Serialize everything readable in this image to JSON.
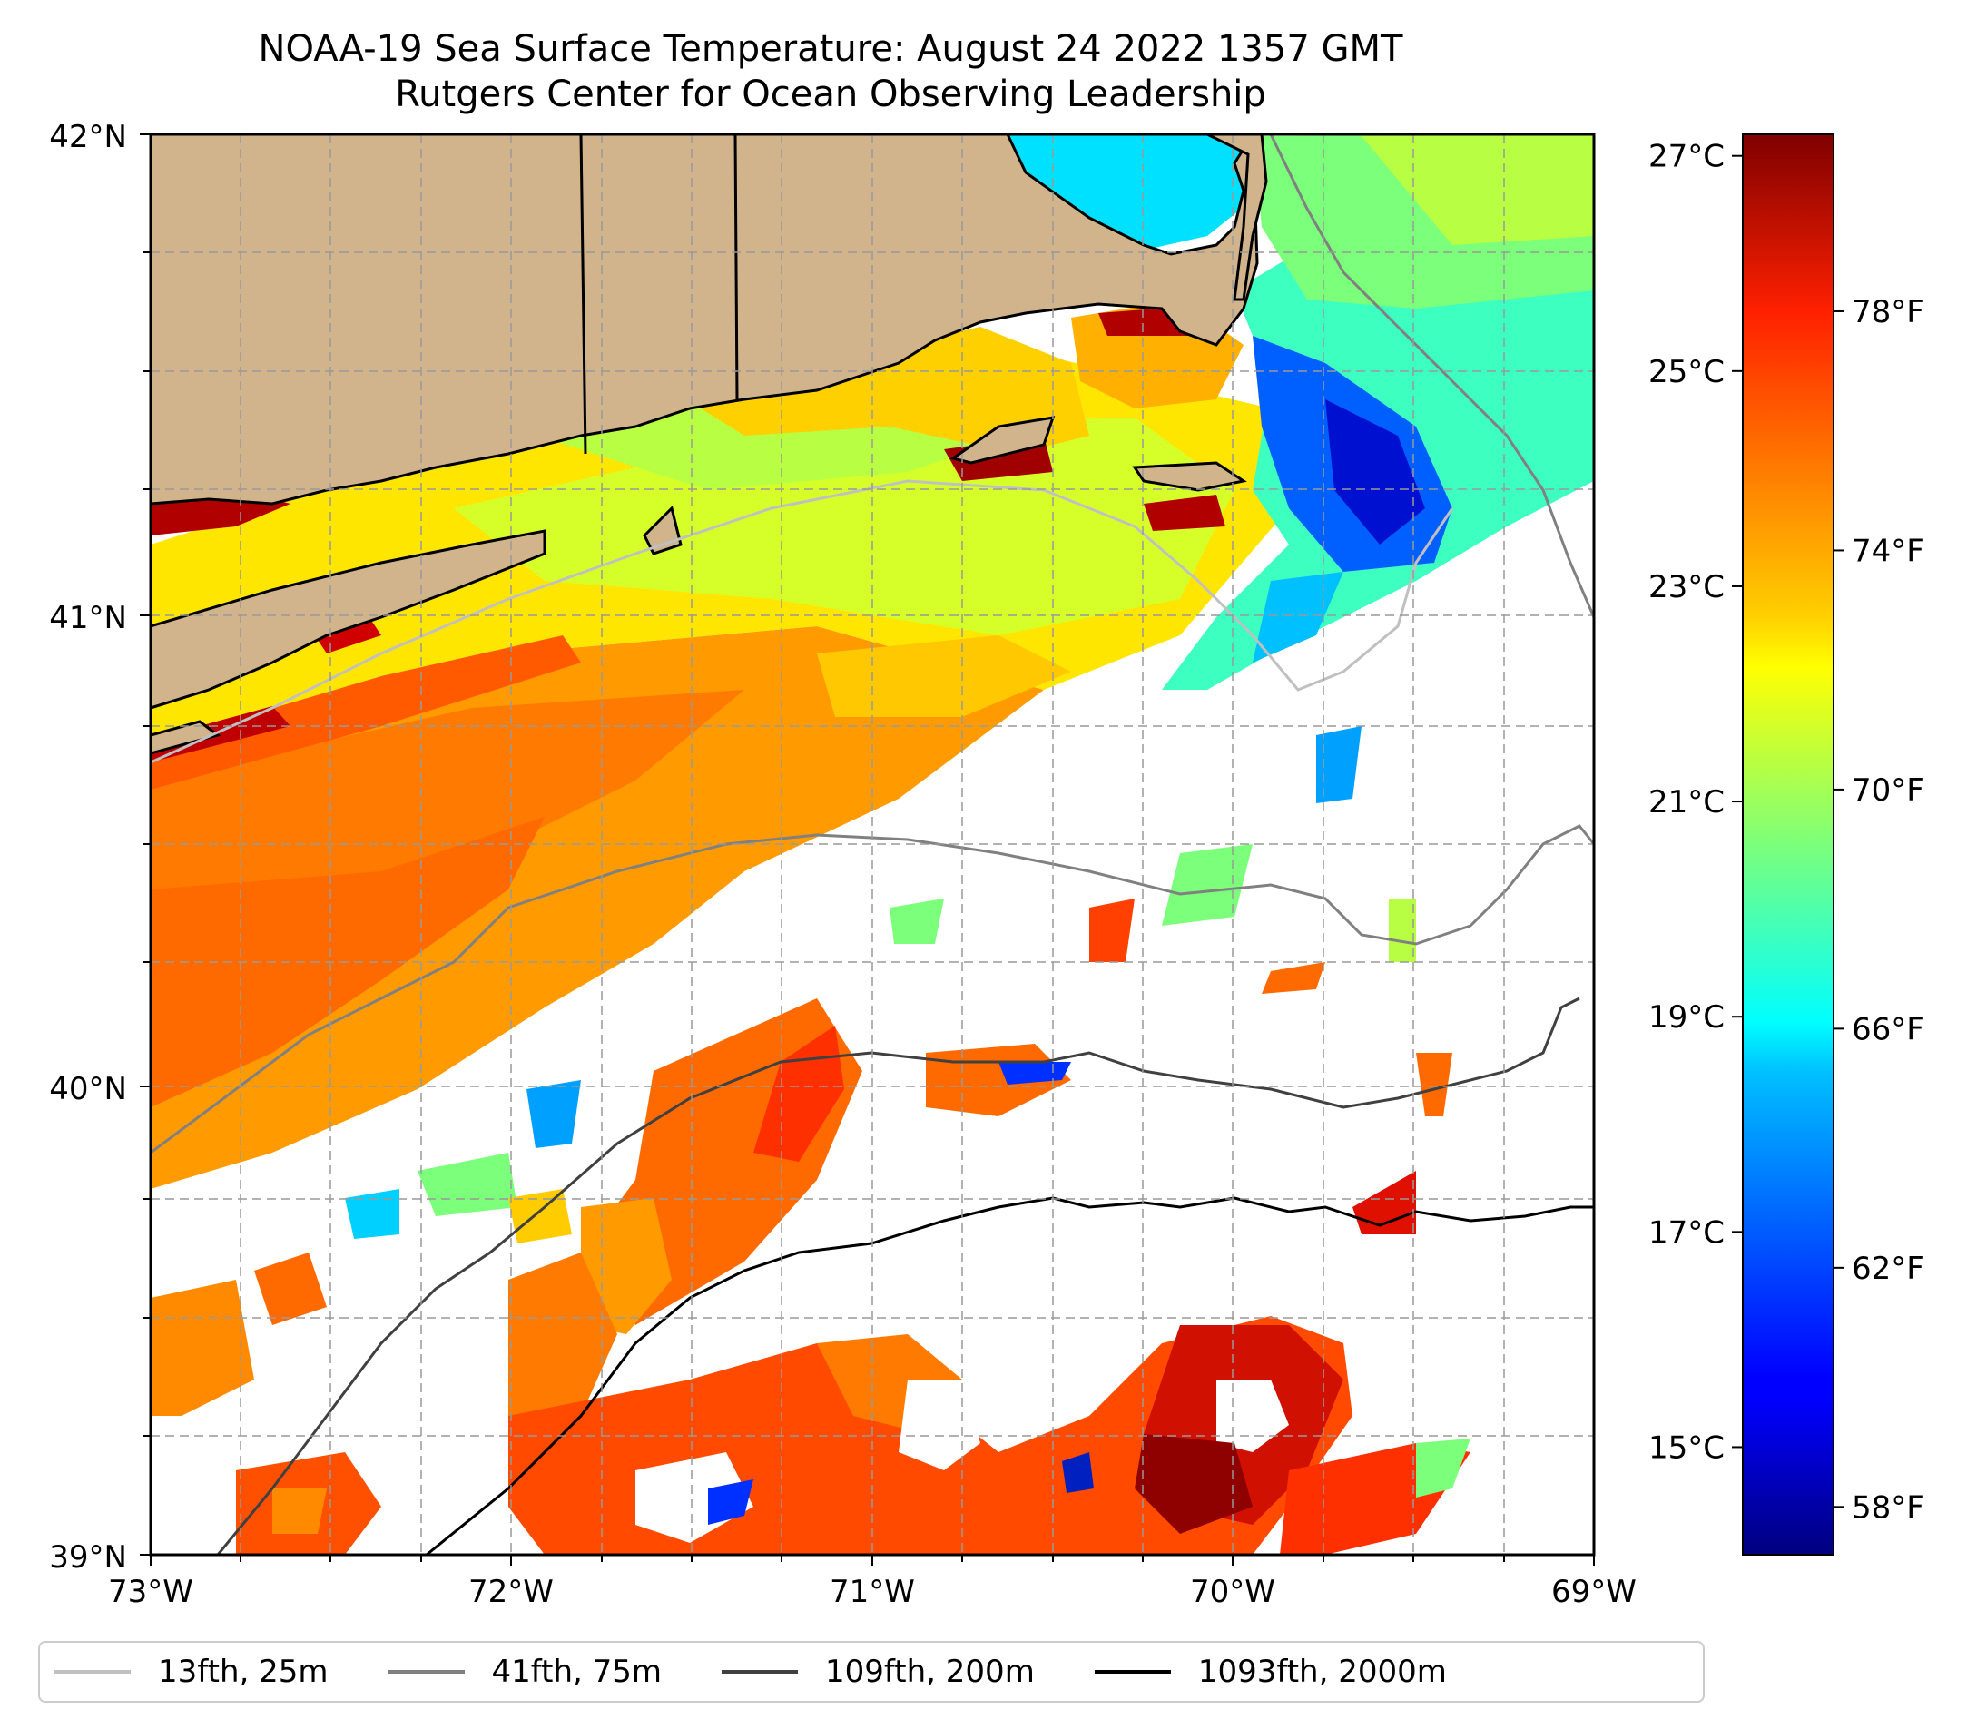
{
  "title": {
    "line1": "NOAA-19 Sea Surface Temperature: August 24 2022 1357 GMT",
    "line2": "Rutgers Center for Ocean Observing Leadership"
  },
  "axes": {
    "lat_labels": [
      "42°N",
      "41°N",
      "40°N",
      "39°N"
    ],
    "lon_labels": [
      "73°W",
      "72°W",
      "71°W",
      "70°W",
      "69°W"
    ],
    "lat_range": [
      39,
      42
    ],
    "lon_range": [
      -73,
      -69
    ],
    "grid": true
  },
  "colorbar": {
    "celsius_labels": [
      "27°C",
      "25°C",
      "23°C",
      "21°C",
      "19°C",
      "17°C",
      "15°C"
    ],
    "celsius_values": [
      27,
      25,
      23,
      21,
      19,
      17,
      15
    ],
    "fahrenheit_labels": [
      "78°F",
      "74°F",
      "70°F",
      "66°F",
      "62°F",
      "58°F"
    ],
    "fahrenheit_values": [
      78,
      74,
      70,
      66,
      62,
      58
    ],
    "range_celsius": [
      14.0,
      27.2
    ],
    "colormap": "jet"
  },
  "legend": {
    "items": [
      {
        "label": "13fth, 25m",
        "color": "#c0c0c0"
      },
      {
        "label": "41fth, 75m",
        "color": "#808080"
      },
      {
        "label": "109fth, 200m",
        "color": "#404040"
      },
      {
        "label": "1093fth, 2000m",
        "color": "#000000"
      }
    ]
  },
  "colors": {
    "land": "#d2b48c",
    "no_data": "#ffffff"
  }
}
